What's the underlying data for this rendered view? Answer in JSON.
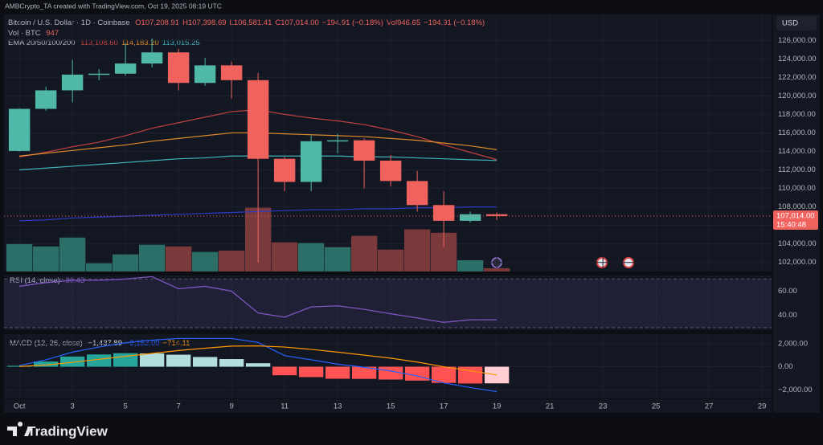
{
  "header": {
    "credit": "AMBCrypto_TA created with TradingView.com, Oct 19, 2025 08:19 UTC",
    "currency": "USD"
  },
  "footer": {
    "brand": "TradingView"
  },
  "chart_data": [
    {
      "type": "candlestick",
      "title": "Bitcoin / U.S. Dollar · 1D · Coinbase",
      "ohlc_labels": [
        "O107,208.91",
        "H107,398.69",
        "L106,581.41",
        "C107,014.00",
        "−194.91 (−0.18%)"
      ],
      "volume_stats_label": "Vol946.65",
      "volume_change_label": "−194.91 (−0.18%)",
      "x": [
        1,
        2,
        3,
        4,
        5,
        6,
        7,
        8,
        9,
        10,
        11,
        12,
        13,
        14,
        15,
        16,
        17,
        18,
        19
      ],
      "open": [
        114050,
        118600,
        120600,
        122300,
        122400,
        123500,
        124700,
        121400,
        123300,
        121700,
        113200,
        110700,
        115100,
        115200,
        113000,
        110800,
        108200,
        106500,
        107208.91
      ],
      "high": [
        118650,
        121000,
        123900,
        122900,
        125700,
        126200,
        125100,
        124100,
        123700,
        122500,
        113400,
        115700,
        115900,
        115400,
        113600,
        111900,
        109700,
        107500,
        107398.69
      ],
      "low": [
        113970,
        118400,
        119300,
        121700,
        122200,
        123100,
        120600,
        121100,
        119700,
        102000,
        109700,
        109700,
        113800,
        110000,
        110200,
        107500,
        103600,
        106300,
        106581.41
      ],
      "close": [
        118600,
        120600,
        122300,
        122400,
        123500,
        124700,
        121400,
        123300,
        121700,
        113200,
        110700,
        115100,
        115200,
        113000,
        110800,
        108200,
        106500,
        107208.91,
        107014
      ],
      "up_color": "#4fb8a6",
      "down_color": "#f0625d",
      "volume": {
        "name": "Vol · BTC",
        "values": [
          8000,
          7300,
          9900,
          2400,
          5000,
          7800,
          7300,
          5700,
          6100,
          18600,
          8500,
          8300,
          7100,
          10400,
          6400,
          12300,
          11300,
          3300,
          947
        ],
        "value_label": "947",
        "up_color": "#2b6f68",
        "down_color": "#7a3a3c",
        "ylim": [
          0,
          75000
        ]
      },
      "ema_legend": "EMA 20/50/100/200",
      "series": [
        {
          "color": "#c0413f",
          "values": [
            113400,
            113900,
            114500,
            115000,
            115700,
            116500,
            117100,
            117700,
            118300,
            118500,
            118000,
            117600,
            117300,
            116900,
            116300,
            115600,
            114700,
            113900,
            113108.6
          ],
          "value_label": "113,108.60"
        },
        {
          "color": "#e08a2c",
          "values": [
            113500,
            113800,
            114100,
            114400,
            114700,
            115100,
            115400,
            115700,
            116000,
            116000,
            115900,
            115800,
            115700,
            115600,
            115400,
            115200,
            114900,
            114600,
            114183.2
          ],
          "value_label": "114,183.20"
        },
        {
          "color": "#3fb3b8",
          "values": [
            112000,
            112200,
            112400,
            112600,
            112800,
            113000,
            113200,
            113300,
            113500,
            113500,
            113500,
            113500,
            113500,
            113400,
            113400,
            113300,
            113200,
            113100,
            113015.25
          ],
          "value_label": "113,015.25"
        },
        {
          "color": "#2a3bc4",
          "values": [
            106500,
            106600,
            106800,
            106900,
            107000,
            107100,
            107200,
            107300,
            107400,
            107500,
            107600,
            107700,
            107700,
            107800,
            107800,
            107900,
            107900,
            108000,
            108000
          ]
        }
      ],
      "last_price_label": "107,014.00",
      "countdown_label": "15:40:48",
      "xlim": [
        0.42,
        29.36
      ],
      "xticks": [
        {
          "value": 1,
          "label": "Oct"
        },
        3,
        5,
        7,
        9,
        11,
        13,
        15,
        17,
        19,
        21,
        23,
        25,
        27,
        29
      ],
      "ylim": [
        101020,
        128800
      ],
      "yticks": [
        {
          "value": 102000,
          "label": "102,000.00"
        },
        {
          "value": 104000,
          "label": "104,000.00"
        },
        {
          "value": 106000,
          "label": "106,000.00"
        },
        {
          "value": 108000,
          "label": "108,000.00"
        },
        {
          "value": 110000,
          "label": "110,000.00"
        },
        {
          "value": 112000,
          "label": "112,000.00"
        },
        {
          "value": 114000,
          "label": "114,000.00"
        },
        {
          "value": 116000,
          "label": "116,000.00"
        },
        {
          "value": 118000,
          "label": "118,000.00"
        },
        {
          "value": 120000,
          "label": "120,000.00"
        },
        {
          "value": 122000,
          "label": "122,000.00"
        },
        {
          "value": 124000,
          "label": "124,000.00"
        },
        {
          "value": 126000,
          "label": "126,000.00"
        }
      ],
      "grid": true
    },
    {
      "type": "line",
      "title": "RSI (14, close)",
      "value_label": "36.43",
      "color": "#7e57c2",
      "values": [
        64,
        67,
        69,
        69,
        70,
        72,
        62,
        64,
        60,
        42,
        38.6,
        47,
        47.9,
        45,
        41.4,
        37.9,
        34.3,
        36.4,
        36.43
      ],
      "band": [
        30,
        70
      ],
      "ylim": [
        27.9,
        72.9
      ],
      "yticks": [
        {
          "value": 40,
          "label": "40.00"
        },
        {
          "value": 60,
          "label": "60.00"
        }
      ]
    },
    {
      "type": "macd",
      "title": "MACD (12, 26, close)",
      "series": [
        {
          "color": "#26a69a",
          "values": [
            80,
            450,
            880,
            1060,
            1170,
            1150,
            1040,
            840,
            660,
            300,
            -740,
            -900,
            -1040,
            -1050,
            -1110,
            -1200,
            -1400,
            -1450,
            -1437.89
          ],
          "value_label": "−1,437.89"
        },
        {
          "color": "#2962ff",
          "values": [
            100,
            600,
            1260,
            1700,
            2070,
            2300,
            2440,
            2440,
            2440,
            2100,
            960,
            600,
            220,
            -50,
            -370,
            -800,
            -1400,
            -1800,
            -2152
          ],
          "value_label": "−2,152.00"
        },
        {
          "color": "#ff9800",
          "values": [
            20,
            150,
            380,
            640,
            900,
            1150,
            1400,
            1600,
            1780,
            1800,
            1700,
            1500,
            1260,
            1000,
            740,
            400,
            0,
            -350,
            -714.11
          ],
          "value_label": "−714.11"
        }
      ],
      "histogram_colors": [
        "#26a69a",
        "#b2dfdb",
        "#ff5252",
        "#ffcdd2"
      ],
      "ylim": [
        -2740,
        2815
      ],
      "yticks": [
        {
          "value": -2000,
          "label": "−2,000.00"
        },
        {
          "value": 0,
          "label": "0.00"
        },
        {
          "value": 2000,
          "label": "2,000.00"
        }
      ]
    }
  ]
}
